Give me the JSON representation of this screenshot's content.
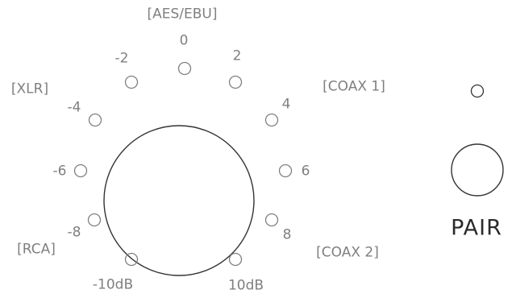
{
  "dial": {
    "scale": [
      "-10dB",
      "-8",
      "-6",
      "-4",
      "-2",
      "0",
      "2",
      "4",
      "6",
      "8",
      "10dB"
    ],
    "inputs": [
      "[AES/EBU]",
      "[XLR]",
      "[COAX 1]",
      "[RCA]",
      "[COAX 2]"
    ]
  },
  "pair": {
    "label": "PAIR"
  },
  "colors": {
    "stroke": "#333333",
    "led": "#7f7f7f",
    "text": "#7f7f7f"
  }
}
